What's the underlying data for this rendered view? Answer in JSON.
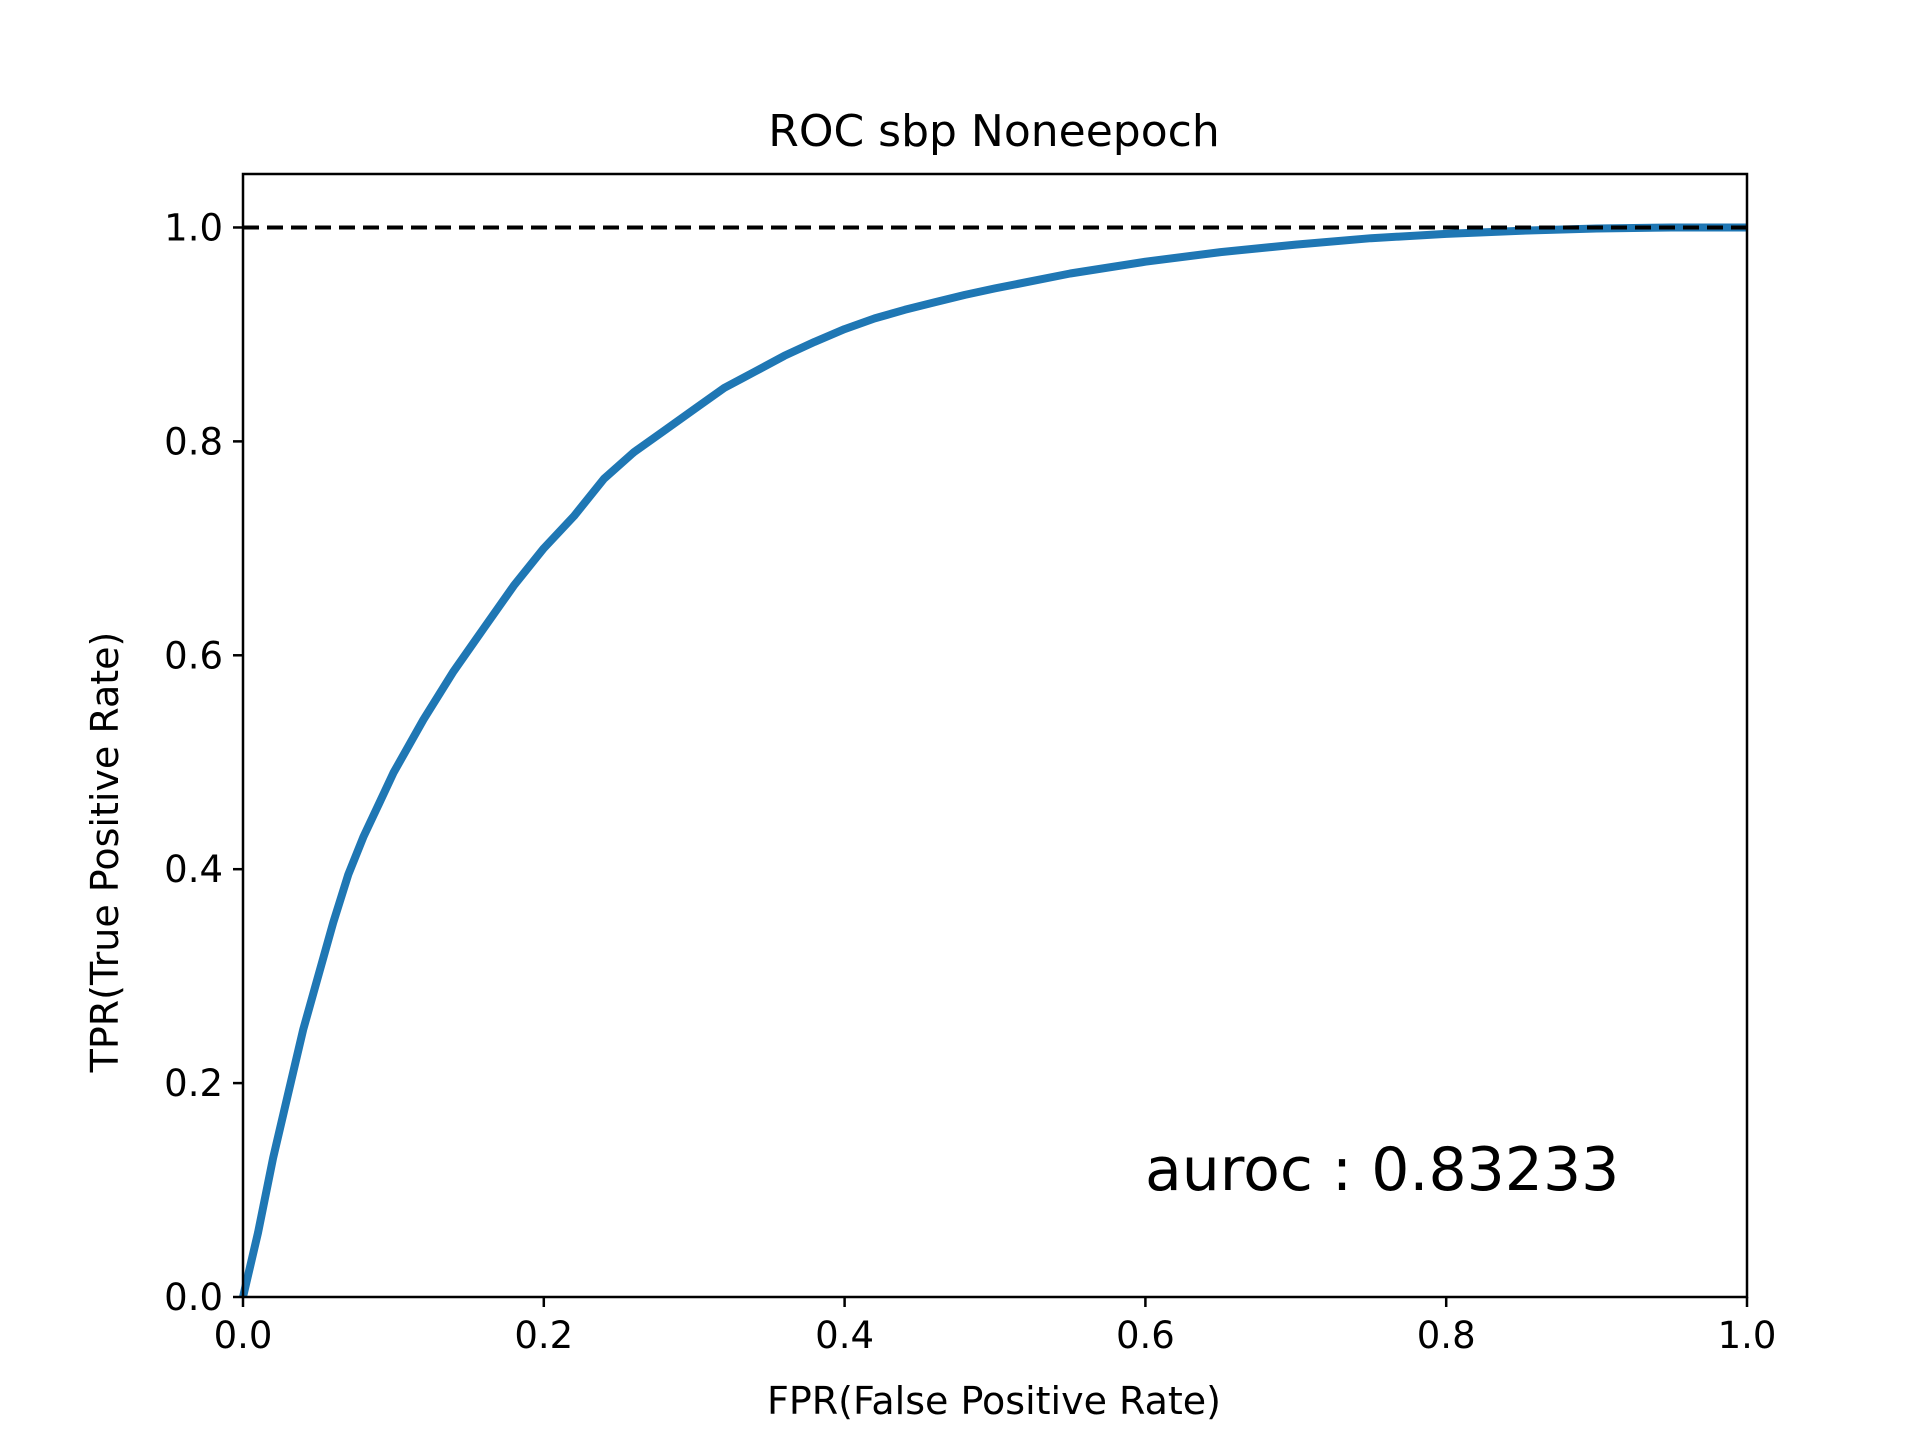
{
  "chart_data": {
    "type": "line",
    "title": "ROC sbp Noneepoch",
    "xlabel": "FPR(False Positive Rate)",
    "ylabel": "TPR(True Positive Rate)",
    "xlim": [
      0.0,
      1.0
    ],
    "ylim": [
      0.0,
      1.05
    ],
    "xticks": [
      "0.0",
      "0.2",
      "0.4",
      "0.6",
      "0.8",
      "1.0"
    ],
    "yticks": [
      "0.0",
      "0.2",
      "0.4",
      "0.6",
      "0.8",
      "1.0"
    ],
    "grid": false,
    "annotation": "auroc : 0.83233",
    "reference_line": {
      "y": 1.0,
      "style": "dashed",
      "color": "#000000"
    },
    "series": [
      {
        "color": "#1f77b4",
        "x": [
          0.0,
          0.01,
          0.02,
          0.03,
          0.04,
          0.05,
          0.06,
          0.07,
          0.08,
          0.09,
          0.1,
          0.12,
          0.14,
          0.16,
          0.18,
          0.2,
          0.22,
          0.24,
          0.26,
          0.28,
          0.3,
          0.32,
          0.34,
          0.36,
          0.38,
          0.4,
          0.42,
          0.44,
          0.46,
          0.48,
          0.5,
          0.55,
          0.6,
          0.65,
          0.7,
          0.75,
          0.8,
          0.85,
          0.9,
          0.95,
          1.0
        ],
        "y": [
          0.0,
          0.06,
          0.13,
          0.19,
          0.25,
          0.3,
          0.35,
          0.395,
          0.43,
          0.46,
          0.49,
          0.54,
          0.585,
          0.625,
          0.665,
          0.7,
          0.73,
          0.765,
          0.79,
          0.81,
          0.83,
          0.85,
          0.865,
          0.88,
          0.893,
          0.905,
          0.915,
          0.923,
          0.93,
          0.937,
          0.943,
          0.957,
          0.968,
          0.977,
          0.984,
          0.99,
          0.994,
          0.997,
          0.999,
          1.0,
          1.0
        ]
      }
    ]
  }
}
